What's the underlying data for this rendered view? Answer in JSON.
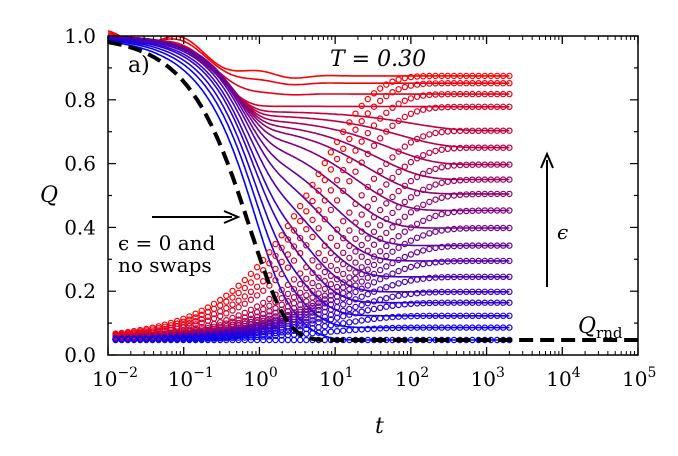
{
  "chart_data": {
    "type": "line",
    "panel_label": "a)",
    "title": "T = 0.30",
    "xlabel": "t",
    "ylabel": "Q",
    "xscale": "log",
    "xlim": [
      0.01,
      100000
    ],
    "ylim": [
      0.0,
      1.0
    ],
    "x_ticks": [
      {
        "base": "10",
        "exp": "−2"
      },
      {
        "base": "10",
        "exp": "−1"
      },
      {
        "base": "10",
        "exp": "0"
      },
      {
        "base": "10",
        "exp": "1"
      },
      {
        "base": "10",
        "exp": "2"
      },
      {
        "base": "10",
        "exp": "3"
      },
      {
        "base": "10",
        "exp": "4"
      },
      {
        "base": "10",
        "exp": "5"
      }
    ],
    "y_ticks": [
      "0.0",
      "0.2",
      "0.4",
      "0.6",
      "0.8",
      "1.0"
    ],
    "annotations": {
      "no_swap_line1": "ϵ = 0 and",
      "no_swap_line2": "no swaps",
      "epsilon_arrow": "ϵ",
      "qrnd_base": "Q",
      "qrnd_sub": "rnd"
    },
    "reference_curve": {
      "name": "ϵ = 0 and no swaps",
      "style": "dashed",
      "color": "#000000",
      "q_rnd": 0.047,
      "tau": 0.75,
      "beta": 0.9
    },
    "t_max_series": 2000,
    "color_high_epsilon": "#ff0000",
    "color_low_epsilon": "#0000ff",
    "series_plateaus": [
      0.875,
      0.852,
      0.818,
      0.778,
      0.703,
      0.65,
      0.597,
      0.55,
      0.505,
      0.453,
      0.398,
      0.343,
      0.295,
      0.245,
      0.198,
      0.164,
      0.123,
      0.086,
      0.047
    ],
    "series_styles": [
      "solid line (from ordered start)",
      "open circles (from random start)"
    ]
  }
}
